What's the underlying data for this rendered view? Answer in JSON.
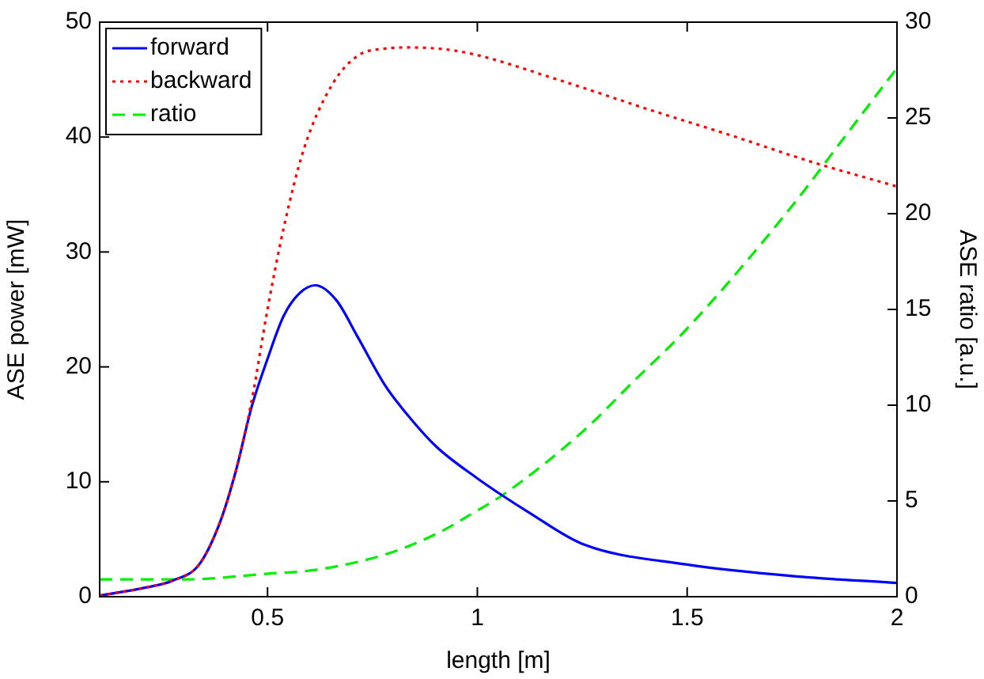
{
  "chart_data": {
    "type": "line",
    "xlabel": "length [m]",
    "ylabel": "ASE power [mW]",
    "y2label": "ASE ratio [a.u.]",
    "xlim": [
      0.1,
      2
    ],
    "xticks": [
      0.5,
      1,
      1.5,
      2
    ],
    "ylim": [
      0,
      50
    ],
    "yticks": [
      0,
      10,
      20,
      30,
      40,
      50
    ],
    "y2lim": [
      0,
      30
    ],
    "y2ticks": [
      0,
      5,
      10,
      15,
      20,
      25,
      30
    ],
    "grid": false,
    "legend": "top left",
    "marker": "none",
    "series": [
      {
        "name": "forward",
        "color": "#0000ff",
        "line_style": "solid",
        "x": [
          0.1,
          0.21,
          0.274,
          0.337,
          0.387,
          0.425,
          0.462,
          0.5,
          0.538,
          0.576,
          0.614,
          0.664,
          0.715,
          0.78,
          0.841,
          0.904,
          1.0,
          1.06,
          1.12,
          1.25,
          1.5,
          1.75,
          2.0
        ],
        "values": [
          0.1,
          0.8,
          1.4,
          2.8,
          6.5,
          11,
          16.5,
          20.7,
          24.4,
          26.4,
          27.1,
          25.8,
          22.6,
          18.4,
          15.5,
          13,
          10.3,
          8.8,
          7.4,
          4.6,
          2.8,
          1.8,
          1.2
        ]
      },
      {
        "name": "backward",
        "color": "#ff0000",
        "line_style": "dotted",
        "x": [
          0.1,
          0.21,
          0.274,
          0.337,
          0.387,
          0.425,
          0.462,
          0.5,
          0.538,
          0.587,
          0.653,
          0.716,
          0.78,
          0.84,
          0.966,
          1.2,
          1.4,
          1.6,
          1.8,
          2.0
        ],
        "values": [
          0.1,
          0.8,
          1.4,
          2.8,
          6.5,
          11,
          17,
          25,
          32,
          39,
          44.5,
          47.1,
          47.7,
          47.8,
          47.4,
          44.9,
          42.5,
          40.2,
          37.8,
          35.7
        ]
      },
      {
        "name": "ratio",
        "color": "#00ee00",
        "line_style": "dashed",
        "axis": "y2",
        "x": [
          0.1,
          0.3,
          0.5,
          0.614,
          0.78,
          0.904,
          1.0,
          1.06,
          1.25,
          1.375,
          1.5,
          1.75,
          1.875,
          2.0
        ],
        "values": [
          0.9,
          0.9,
          1.2,
          1.4,
          2.2,
          3.3,
          4.5,
          5.3,
          8.6,
          11.3,
          14.0,
          20.4,
          24.0,
          27.6
        ]
      }
    ]
  }
}
